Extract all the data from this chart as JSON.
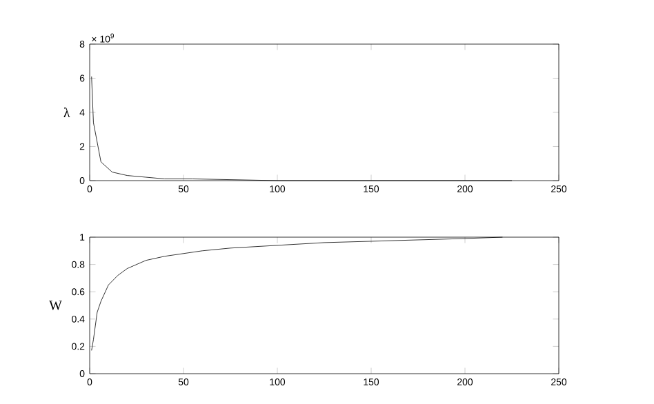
{
  "chart_data": [
    {
      "type": "line",
      "ylabel": "λ",
      "annotations": [
        "× 10$^{9}$"
      ],
      "xlim": [
        0,
        250
      ],
      "ylim": [
        0,
        8
      ],
      "xticks": [
        0,
        50,
        100,
        150,
        200,
        250
      ],
      "yticks": [
        0,
        2,
        4,
        6,
        8
      ],
      "grid": false,
      "series": [
        {
          "color": "#000000",
          "x": [
            1,
            2,
            6,
            12,
            20,
            30,
            40,
            55,
            100,
            150,
            225
          ],
          "values": [
            6.1,
            3.4,
            1.1,
            0.5,
            0.3,
            0.2,
            0.1,
            0.1,
            0.0,
            0.0,
            0.0
          ]
        }
      ]
    },
    {
      "type": "line",
      "ylabel": "W",
      "xlim": [
        0,
        250
      ],
      "ylim": [
        0,
        1
      ],
      "xticks": [
        0,
        50,
        100,
        150,
        200,
        250
      ],
      "yticks": [
        0,
        0.2,
        0.4,
        0.6,
        0.8,
        1
      ],
      "grid": false,
      "series": [
        {
          "color": "#000000",
          "x": [
            1,
            2,
            4,
            6,
            10,
            15,
            20,
            30,
            40,
            50,
            60,
            75,
            100,
            125,
            150,
            175,
            200,
            220
          ],
          "values": [
            0.17,
            0.25,
            0.45,
            0.53,
            0.65,
            0.72,
            0.77,
            0.83,
            0.86,
            0.88,
            0.9,
            0.92,
            0.94,
            0.96,
            0.97,
            0.98,
            0.99,
            1.0
          ]
        }
      ]
    }
  ]
}
